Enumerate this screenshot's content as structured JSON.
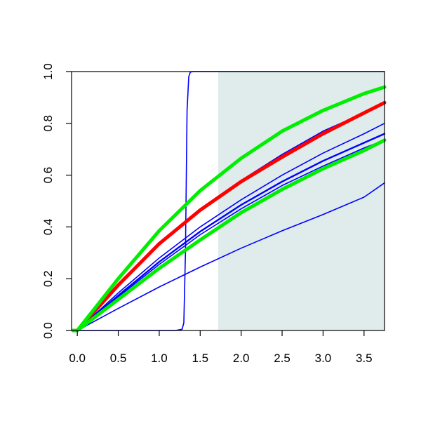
{
  "chart_data": {
    "type": "line",
    "title": "",
    "xlabel": "",
    "ylabel": "",
    "xlim": [
      -0.07,
      3.75
    ],
    "ylim": [
      0.0,
      1.0
    ],
    "grid": false,
    "legend": "none",
    "x_ticks": [
      "0.0",
      "0.5",
      "1.0",
      "1.5",
      "2.0",
      "2.5",
      "3.0",
      "3.5"
    ],
    "y_ticks": [
      "0.0",
      "0.2",
      "0.4",
      "0.6",
      "0.8",
      "1.0"
    ],
    "shaded_region": {
      "x_from": 1.72,
      "x_to": 3.75,
      "color": "#dfeceb"
    },
    "series": [
      {
        "color": "#0000ff",
        "width": "thin",
        "x": [
          -0.05,
          0.0,
          1.2,
          1.28,
          1.3,
          1.32,
          1.34,
          1.36,
          1.38,
          1.42,
          3.75
        ],
        "y": [
          0.0,
          0.0,
          0.0,
          0.005,
          0.03,
          0.3,
          0.85,
          0.98,
          0.998,
          1.0,
          1.0
        ]
      },
      {
        "color": "#0000ff",
        "width": "thin",
        "x": [
          -0.05,
          0.0,
          0.5,
          1.0,
          1.5,
          2.0,
          2.5,
          3.0,
          3.5,
          3.75
        ],
        "y": [
          0.0,
          0.0,
          0.085,
          0.168,
          0.245,
          0.318,
          0.385,
          0.448,
          0.515,
          0.57
        ]
      },
      {
        "color": "#0000ff",
        "width": "thin",
        "x": [
          -0.05,
          0.0,
          0.5,
          1.0,
          1.5,
          2.0,
          2.5,
          3.0,
          3.5,
          3.75
        ],
        "y": [
          0.0,
          0.0,
          0.13,
          0.255,
          0.37,
          0.47,
          0.56,
          0.635,
          0.705,
          0.735
        ]
      },
      {
        "color": "#0000ff",
        "width": "medium",
        "x": [
          -0.05,
          0.0,
          0.5,
          1.0,
          1.5,
          2.0,
          2.5,
          3.0,
          3.5,
          3.75
        ],
        "y": [
          0.0,
          0.0,
          0.135,
          0.265,
          0.382,
          0.485,
          0.575,
          0.655,
          0.725,
          0.76
        ]
      },
      {
        "color": "#0000ff",
        "width": "thin",
        "x": [
          -0.05,
          0.0,
          0.5,
          1.0,
          1.5,
          2.0,
          2.5,
          3.0,
          3.5,
          3.75
        ],
        "y": [
          0.0,
          0.0,
          0.145,
          0.28,
          0.4,
          0.505,
          0.6,
          0.685,
          0.76,
          0.8
        ]
      },
      {
        "color": "#0000ff",
        "width": "thin",
        "x": [
          -0.05,
          0.0,
          0.5,
          1.0,
          1.5,
          2.0,
          2.5,
          3.0,
          3.5,
          3.75
        ],
        "y": [
          0.0,
          0.0,
          0.17,
          0.33,
          0.47,
          0.58,
          0.68,
          0.77,
          0.84,
          0.875
        ]
      },
      {
        "color": "#ff0000",
        "width": "thick",
        "x": [
          -0.05,
          0.0,
          0.5,
          1.0,
          1.5,
          2.0,
          2.5,
          3.0,
          3.5,
          3.75
        ],
        "y": [
          0.0,
          0.0,
          0.175,
          0.335,
          0.465,
          0.575,
          0.67,
          0.76,
          0.84,
          0.88
        ]
      },
      {
        "color": "#00ee00",
        "width": "thick",
        "x": [
          -0.05,
          0.0,
          0.5,
          1.0,
          1.5,
          2.0,
          2.5,
          3.0,
          3.5,
          3.75
        ],
        "y": [
          0.0,
          0.0,
          0.12,
          0.24,
          0.35,
          0.455,
          0.545,
          0.625,
          0.695,
          0.735
        ]
      },
      {
        "color": "#00ee00",
        "width": "thick",
        "x": [
          -0.05,
          0.0,
          0.5,
          1.0,
          1.5,
          2.0,
          2.5,
          3.0,
          3.5,
          3.75
        ],
        "y": [
          0.0,
          0.0,
          0.2,
          0.385,
          0.54,
          0.665,
          0.77,
          0.85,
          0.915,
          0.94
        ]
      }
    ]
  }
}
